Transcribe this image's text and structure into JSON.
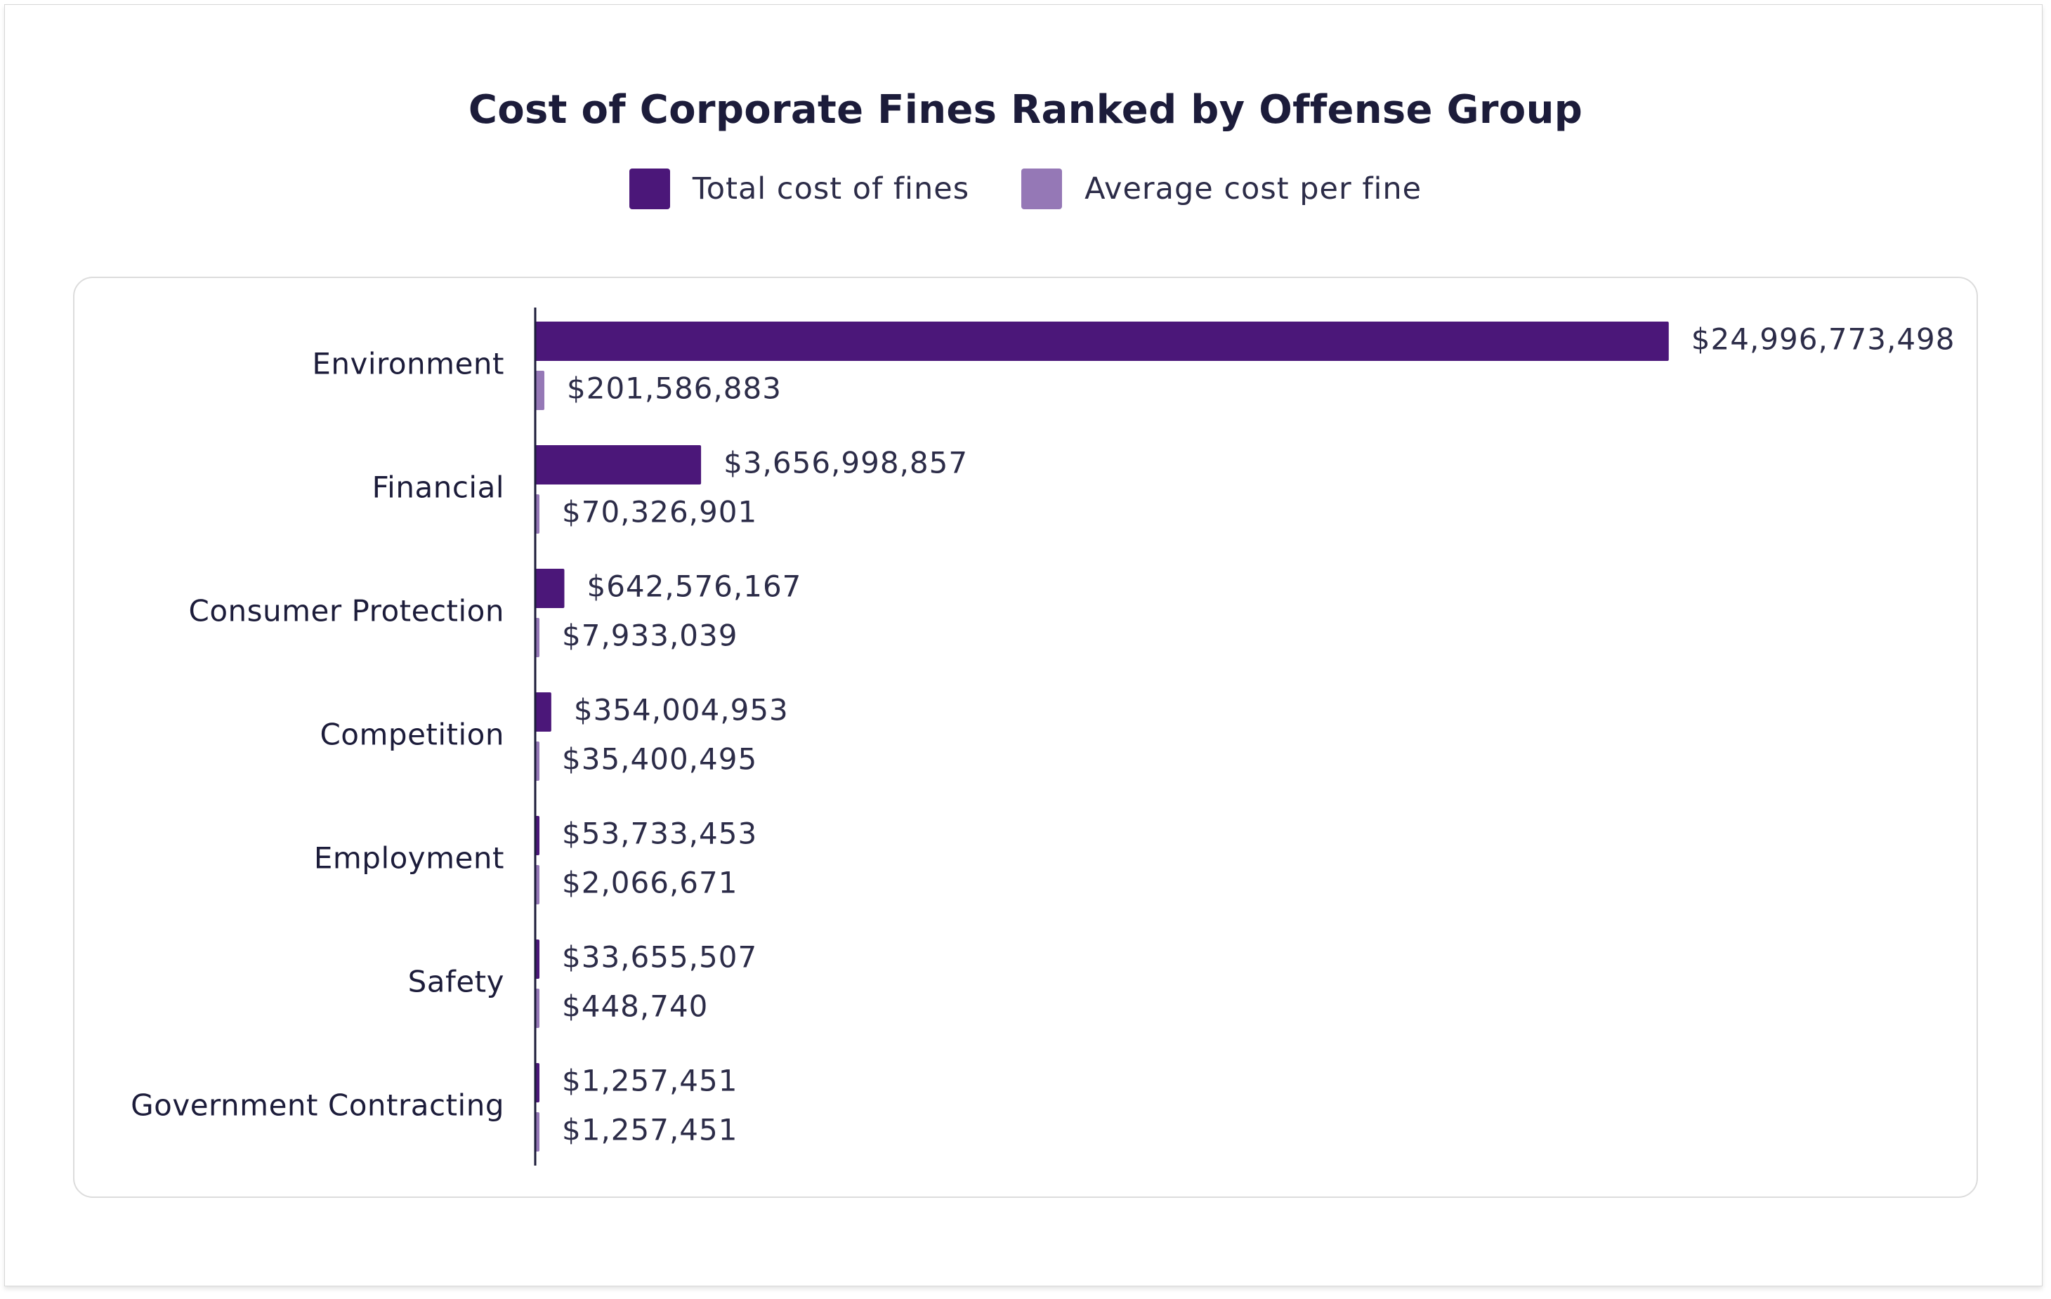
{
  "chart_data": {
    "type": "bar",
    "orientation": "horizontal",
    "title": "Cost of Corporate Fines Ranked by Offense Group",
    "legend_position": "top-center",
    "grid": false,
    "categories": [
      "Environment",
      "Financial",
      "Consumer Protection",
      "Competition",
      "Employment",
      "Safety",
      "Government Contracting"
    ],
    "series": [
      {
        "name": "Total cost of fines",
        "color": "#4b1779",
        "values": [
          24996773498,
          3656998857,
          642576167,
          354004953,
          53733453,
          33655507,
          1257451
        ],
        "labels": [
          "$24,996,773,498",
          "$3,656,998,857",
          "$642,576,167",
          "$354,004,953",
          "$53,733,453",
          "$33,655,507",
          "$1,257,451"
        ]
      },
      {
        "name": "Average cost per fine",
        "color": "#9578b6",
        "values": [
          201586883,
          70326901,
          7933039,
          35400495,
          2066671,
          448740,
          1257451
        ],
        "labels": [
          "$201,586,883",
          "$70,326,901",
          "$7,933,039",
          "$35,400,495",
          "$2,066,671",
          "$448,740",
          "$1,257,451"
        ]
      }
    ],
    "xlim": [
      0,
      25000000000
    ]
  }
}
